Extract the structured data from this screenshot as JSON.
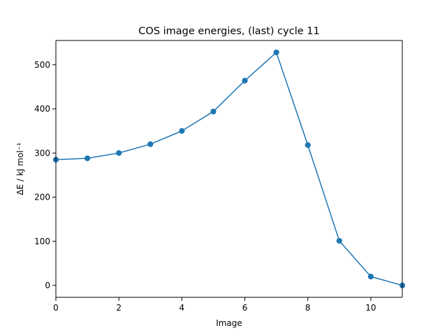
{
  "chart_data": {
    "type": "line",
    "title": "COS image energies, (last) cycle 11",
    "xlabel": "Image",
    "ylabel": "ΔE / kJ mol⁻¹",
    "xlim": [
      0,
      11
    ],
    "ylim": [
      -27,
      555
    ],
    "x_ticks": [
      0,
      2,
      4,
      6,
      8,
      10
    ],
    "y_ticks": [
      0,
      100,
      200,
      300,
      400,
      500
    ],
    "grid": false,
    "series": [
      {
        "color": "#1f77b4",
        "marker": "circle",
        "x": [
          0,
          1,
          2,
          3,
          4,
          5,
          6,
          7,
          8,
          9,
          10,
          11
        ],
        "y": [
          285,
          288,
          300,
          320,
          350,
          394,
          464,
          528,
          318,
          101,
          20,
          0
        ]
      }
    ]
  }
}
